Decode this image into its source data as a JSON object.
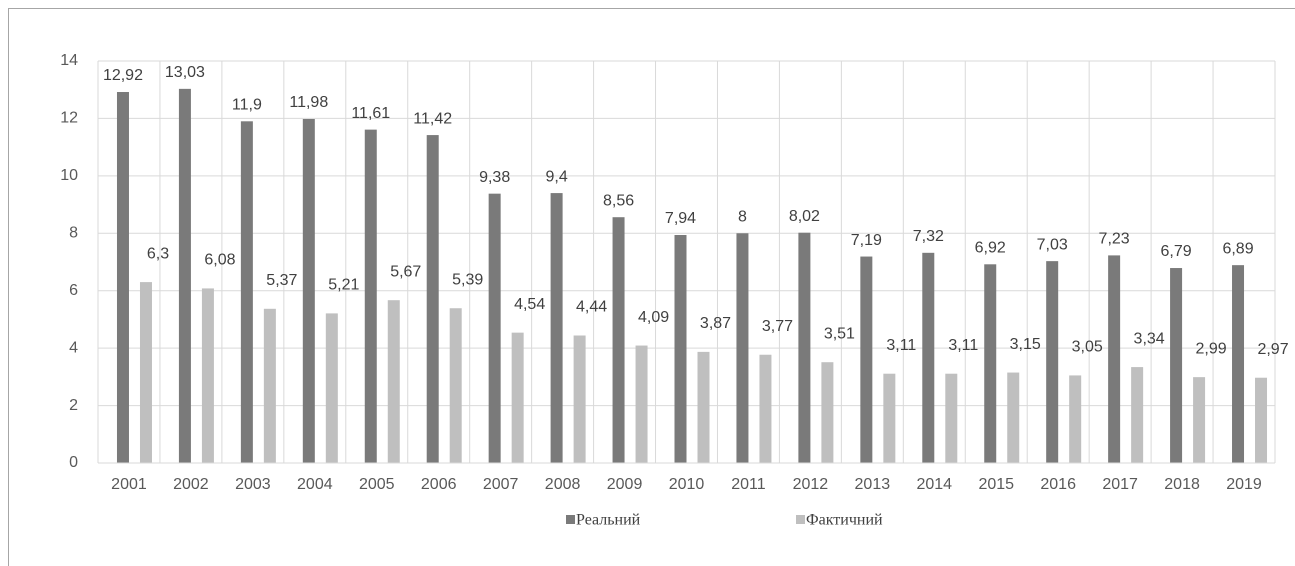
{
  "chart_data": {
    "type": "bar",
    "categories": [
      "2001",
      "2002",
      "2003",
      "2004",
      "2005",
      "2006",
      "2007",
      "2008",
      "2009",
      "2010",
      "2011",
      "2012",
      "2013",
      "2014",
      "2015",
      "2016",
      "2017",
      "2018",
      "2019"
    ],
    "series": [
      {
        "name": "Реальний",
        "color": "#7a7a7a",
        "values": [
          12.92,
          13.03,
          11.9,
          11.98,
          11.61,
          11.42,
          9.38,
          9.4,
          8.56,
          7.94,
          8,
          8.02,
          7.19,
          7.32,
          6.92,
          7.03,
          7.23,
          6.79,
          6.89
        ],
        "value_labels": [
          "12,92",
          "13,03",
          "11,9",
          "11,98",
          "11,61",
          "11,42",
          "9,38",
          "9,4",
          "8,56",
          "7,94",
          "8",
          "8,02",
          "7,19",
          "7,32",
          "6,92",
          "7,03",
          "7,23",
          "6,79",
          "6,89"
        ]
      },
      {
        "name": "Фактичний",
        "color": "#bfbfbf",
        "values": [
          6.3,
          6.08,
          5.37,
          5.21,
          5.67,
          5.39,
          4.54,
          4.44,
          4.09,
          3.87,
          3.77,
          3.51,
          3.11,
          3.11,
          3.15,
          3.05,
          3.34,
          2.99,
          2.97
        ],
        "value_labels": [
          "6,3",
          "6,08",
          "5,37",
          "5,21",
          "5,67",
          "5,39",
          "4,54",
          "4,44",
          "4,09",
          "3,87",
          "3,77",
          "3,51",
          "3,11",
          "3,11",
          "3,15",
          "3,05",
          "3,34",
          "2,99",
          "2,97"
        ]
      }
    ],
    "ylim": [
      0,
      14
    ],
    "yticks": [
      0,
      2,
      4,
      6,
      8,
      10,
      12,
      14
    ],
    "grid": true,
    "legend": "bottom"
  }
}
